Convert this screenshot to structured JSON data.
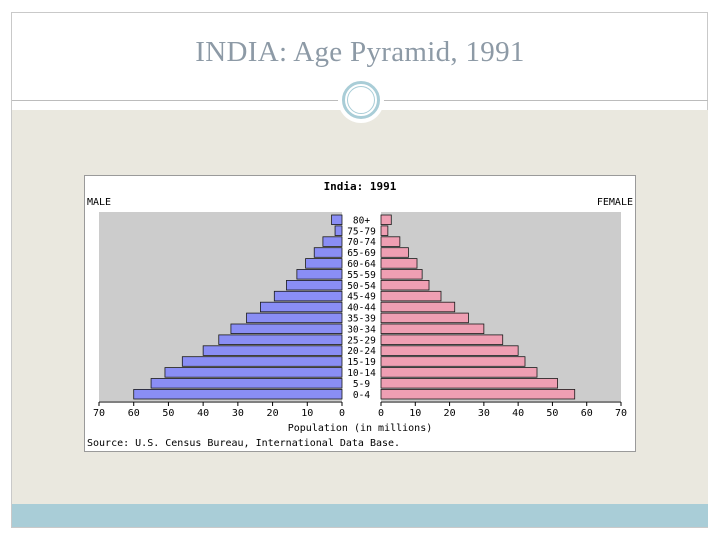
{
  "slide": {
    "title": "INDIA: Age Pyramid, 1991"
  },
  "colors": {
    "male": "#8a8ef5",
    "female": "#ef9fb3",
    "plot_bg": "#cccccc",
    "accent": "#a9cdd7",
    "title": "#8d9aa6"
  },
  "chart_data": {
    "type": "bar",
    "orientation": "horizontal-pyramid",
    "title": "India: 1991",
    "left_label": "MALE",
    "right_label": "FEMALE",
    "xlabel": "Population (in millions)",
    "source": "Source: U.S. Census Bureau, International Data Base.",
    "xlim": [
      0,
      70
    ],
    "ticks": [
      70,
      60,
      50,
      40,
      30,
      20,
      10,
      0
    ],
    "right_ticks": [
      0,
      10,
      20,
      30,
      40,
      50,
      60,
      70
    ],
    "categories": [
      "80+",
      "75-79",
      "70-74",
      "65-69",
      "60-64",
      "55-59",
      "50-54",
      "45-49",
      "40-44",
      "35-39",
      "30-34",
      "25-29",
      "20-24",
      "15-19",
      "10-14",
      "5-9",
      "0-4"
    ],
    "series": [
      {
        "name": "Male",
        "values": [
          3,
          2,
          5.5,
          8,
          10.5,
          13,
          16,
          19.5,
          23.5,
          27.5,
          32,
          35.5,
          40,
          46,
          51,
          55,
          60
        ]
      },
      {
        "name": "Female",
        "values": [
          3,
          2,
          5.5,
          8,
          10.5,
          12,
          14,
          17.5,
          21.5,
          25.5,
          30,
          35.5,
          40,
          42,
          45.5,
          51.5,
          56.5
        ]
      }
    ]
  }
}
